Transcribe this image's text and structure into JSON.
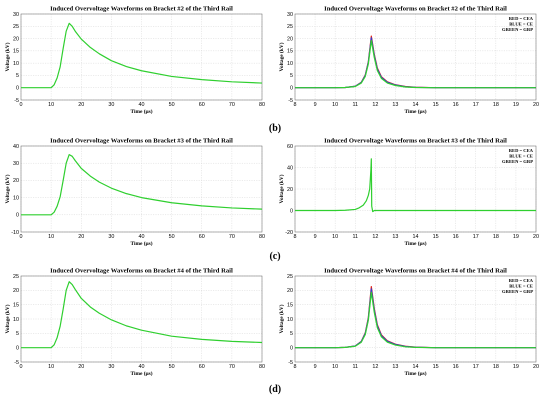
{
  "row_labels": [
    "(b)",
    "(c)",
    "(d)"
  ],
  "colors": {
    "red": "#e0261a",
    "blue": "#2f3bd6",
    "green": "#2fcf2f"
  },
  "chart_data": [
    {
      "type": "line",
      "title": "Induced Overvoltage Waveforms on Bracket #2 of the Third Rail",
      "xlabel": "Time (µs)",
      "ylabel": "Voltage (kV)",
      "xlim": [
        0,
        80
      ],
      "ylim": [
        -5,
        30
      ],
      "xticks": [
        0,
        10,
        20,
        30,
        40,
        50,
        60,
        70,
        80
      ],
      "yticks": [
        -5,
        0,
        5,
        10,
        15,
        20,
        25,
        30
      ],
      "grid": true,
      "legend": null,
      "series": [
        {
          "color": "green",
          "x": [
            0,
            9,
            10,
            11,
            12,
            13,
            14,
            15,
            16,
            17,
            18,
            20,
            23,
            26,
            30,
            35,
            40,
            50,
            60,
            70,
            80
          ],
          "y": [
            0,
            0,
            0,
            1.2,
            4,
            8.5,
            16,
            23,
            26.2,
            25,
            23,
            19.8,
            16.4,
            13.8,
            11,
            8.6,
            6.9,
            4.6,
            3.3,
            2.4,
            1.9
          ]
        }
      ]
    },
    {
      "type": "line",
      "title": "Induced Overvoltage Waveforms on Bracket #2 of the Third Rail",
      "xlabel": "Time (µs)",
      "ylabel": "Voltage (kV)",
      "xlim": [
        8,
        20
      ],
      "ylim": [
        -5,
        30
      ],
      "xticks": [
        8,
        9,
        10,
        11,
        12,
        13,
        14,
        15,
        16,
        17,
        18,
        19,
        20
      ],
      "yticks": [
        -5,
        0,
        5,
        10,
        15,
        20,
        25,
        30
      ],
      "grid": true,
      "legend": [
        "RED = CEA",
        "BLUE = CE",
        "GREEN = GRP"
      ],
      "series": [
        {
          "color": "red",
          "x": [
            8,
            10,
            10.5,
            11,
            11.3,
            11.5,
            11.65,
            11.8,
            11.95,
            12.1,
            12.3,
            12.6,
            13,
            13.5,
            14,
            15,
            20
          ],
          "y": [
            0,
            0,
            0.1,
            0.6,
            2.2,
            5.2,
            10.5,
            21,
            13.5,
            8,
            4.5,
            2.4,
            1.2,
            0.5,
            0.2,
            0,
            0
          ]
        },
        {
          "color": "blue",
          "x": [
            8,
            10,
            10.5,
            11,
            11.3,
            11.5,
            11.65,
            11.8,
            11.95,
            12.1,
            12.3,
            12.6,
            13,
            13.5,
            14,
            15,
            20
          ],
          "y": [
            0,
            0,
            0.1,
            0.6,
            2.1,
            5,
            10.2,
            20.3,
            13,
            7.6,
            4.2,
            2.2,
            1.1,
            0.4,
            0.15,
            0,
            0
          ]
        },
        {
          "color": "green",
          "x": [
            8,
            10,
            10.5,
            11,
            11.3,
            11.5,
            11.65,
            11.8,
            11.95,
            12.1,
            12.3,
            12.6,
            13,
            13.5,
            14,
            15,
            20
          ],
          "y": [
            0,
            0,
            0.1,
            0.5,
            1.9,
            4.6,
            9.6,
            19.2,
            12.2,
            7,
            3.8,
            1.9,
            0.9,
            0.3,
            0.1,
            0,
            0
          ]
        }
      ]
    },
    {
      "type": "line",
      "title": "Induced Overvoltage Waveforms on Bracket #3 of the Third Rail",
      "xlabel": "Time (µs)",
      "ylabel": "Voltage (kV)",
      "xlim": [
        0,
        80
      ],
      "ylim": [
        -10,
        40
      ],
      "xticks": [
        0,
        10,
        20,
        30,
        40,
        50,
        60,
        70,
        80
      ],
      "yticks": [
        -10,
        0,
        10,
        20,
        30,
        40
      ],
      "grid": true,
      "legend": null,
      "series": [
        {
          "color": "green",
          "x": [
            0,
            9,
            10,
            11,
            12,
            13,
            14,
            15,
            16,
            17,
            18,
            20,
            23,
            26,
            30,
            35,
            40,
            50,
            60,
            70,
            80
          ],
          "y": [
            0,
            0,
            0,
            1.5,
            5,
            10.5,
            20,
            30,
            35,
            34,
            31.5,
            27,
            22.5,
            19,
            15.5,
            12.3,
            10,
            7,
            5.2,
            4,
            3.3
          ]
        }
      ]
    },
    {
      "type": "line",
      "title": "Induced Overvoltage Waveforms on Bracket #3 of the Third Rail",
      "xlabel": "Time (µs)",
      "ylabel": "Voltage (kV)",
      "xlim": [
        8,
        20
      ],
      "ylim": [
        -20,
        60
      ],
      "xticks": [
        8,
        9,
        10,
        11,
        12,
        13,
        14,
        15,
        16,
        17,
        18,
        19,
        20
      ],
      "yticks": [
        -20,
        0,
        20,
        40,
        60
      ],
      "grid": true,
      "legend": [
        "RED = CEA",
        "BLUE = CE",
        "GREEN = GRP"
      ],
      "series": [
        {
          "color": "green",
          "x": [
            8,
            10,
            10.5,
            11,
            11.2,
            11.4,
            11.55,
            11.65,
            11.72,
            11.78,
            11.8,
            11.82,
            11.87,
            11.95,
            12.1,
            12.5,
            13,
            20
          ],
          "y": [
            0,
            0,
            0.2,
            1,
            2.5,
            5,
            9,
            14,
            20,
            38,
            48,
            4,
            -1,
            0,
            0,
            0,
            0,
            0
          ]
        }
      ]
    },
    {
      "type": "line",
      "title": "Induced Overvoltage Waveforms on Bracket #4 of the Third Rail",
      "xlabel": "Time (µs)",
      "ylabel": "Voltage (kV)",
      "xlim": [
        0,
        80
      ],
      "ylim": [
        -5,
        25
      ],
      "xticks": [
        0,
        10,
        20,
        30,
        40,
        50,
        60,
        70,
        80
      ],
      "yticks": [
        -5,
        0,
        5,
        10,
        15,
        20,
        25
      ],
      "grid": true,
      "legend": null,
      "series": [
        {
          "color": "green",
          "x": [
            0,
            9,
            10,
            11,
            12,
            13,
            14,
            15,
            16,
            17,
            18,
            20,
            23,
            26,
            30,
            35,
            40,
            50,
            60,
            70,
            80
          ],
          "y": [
            0,
            0,
            0,
            1,
            3.5,
            7.5,
            13.5,
            20,
            23,
            22,
            20.3,
            17.2,
            14.2,
            12,
            9.7,
            7.6,
            6.1,
            4,
            2.9,
            2.2,
            1.8
          ]
        }
      ]
    },
    {
      "type": "line",
      "title": "Induced Overvoltage Waveforms on Bracket #4 of the Third Rail",
      "xlabel": "Time (µs)",
      "ylabel": "Voltage (kV)",
      "xlim": [
        8,
        20
      ],
      "ylim": [
        -5,
        25
      ],
      "xticks": [
        8,
        9,
        10,
        11,
        12,
        13,
        14,
        15,
        16,
        17,
        18,
        19,
        20
      ],
      "yticks": [
        -5,
        0,
        5,
        10,
        15,
        20,
        25
      ],
      "grid": true,
      "legend": [
        "RED = CEA",
        "BLUE = CE",
        "GREEN = GRP"
      ],
      "series": [
        {
          "color": "red",
          "x": [
            8,
            10,
            10.5,
            11,
            11.3,
            11.5,
            11.65,
            11.8,
            11.95,
            12.1,
            12.3,
            12.6,
            13,
            13.5,
            14,
            15,
            20
          ],
          "y": [
            0,
            0,
            0.1,
            0.6,
            2.2,
            5.2,
            10.4,
            21.3,
            13.6,
            8,
            4.5,
            2.4,
            1.2,
            0.5,
            0.2,
            0,
            0
          ]
        },
        {
          "color": "blue",
          "x": [
            8,
            10,
            10.5,
            11,
            11.3,
            11.5,
            11.65,
            11.8,
            11.95,
            12.1,
            12.3,
            12.6,
            13,
            13.5,
            14,
            15,
            20
          ],
          "y": [
            0,
            0,
            0.1,
            0.6,
            2.1,
            5,
            10,
            20.5,
            13,
            7.6,
            4.2,
            2.2,
            1.1,
            0.4,
            0.15,
            0,
            0
          ]
        },
        {
          "color": "green",
          "x": [
            8,
            10,
            10.5,
            11,
            11.3,
            11.5,
            11.65,
            11.8,
            11.95,
            12.1,
            12.3,
            12.6,
            13,
            13.5,
            14,
            15,
            20
          ],
          "y": [
            0,
            0,
            0.1,
            0.5,
            1.9,
            4.6,
            9.5,
            19.3,
            12.2,
            7,
            3.8,
            1.9,
            0.9,
            0.3,
            0.1,
            0,
            0
          ]
        }
      ]
    }
  ]
}
